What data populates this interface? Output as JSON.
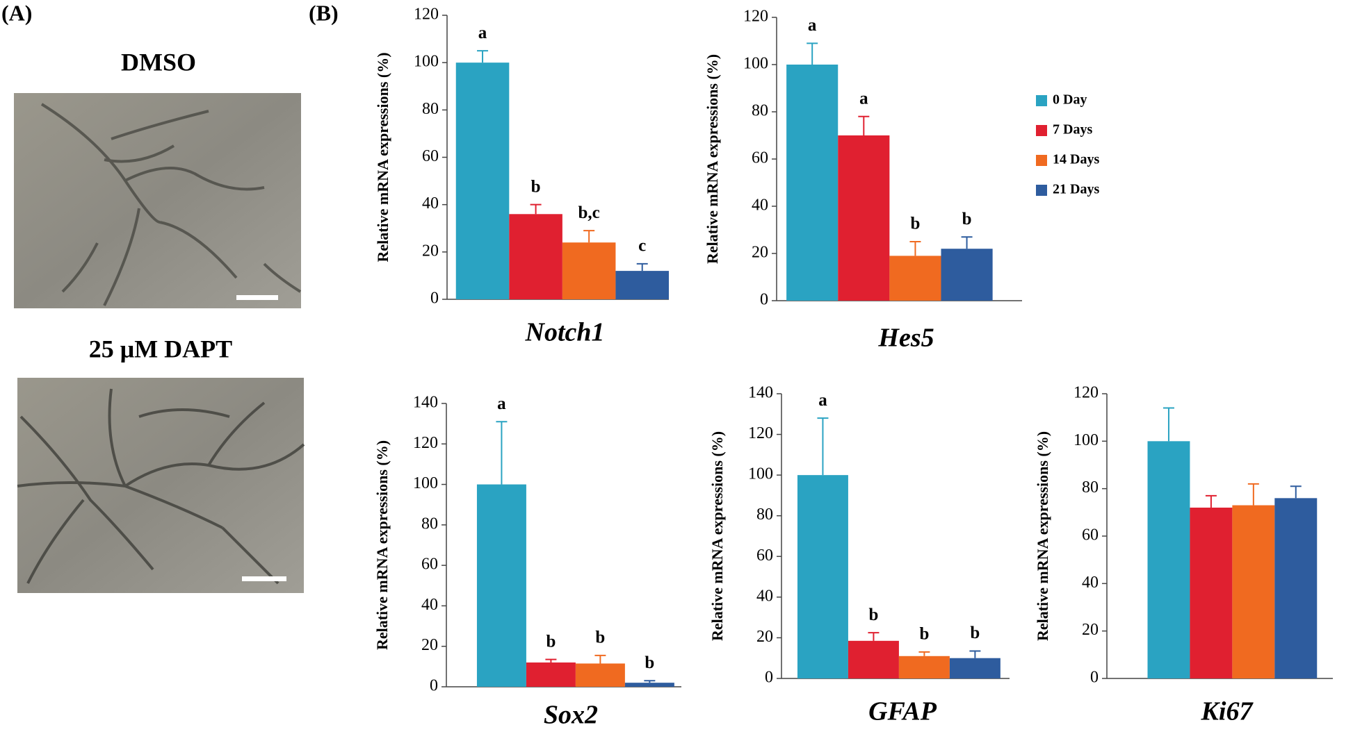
{
  "panel_labels": [
    "(A)",
    "(B)"
  ],
  "images": [
    {
      "label": "DMSO"
    },
    {
      "label": "25 μM DAPT"
    }
  ],
  "chart_data": [
    {
      "type": "bar",
      "title": "Notch1",
      "y_label": "Relative mRNA expressions (%)",
      "ylim": [
        0,
        120
      ],
      "yticks": [
        0,
        20,
        40,
        60,
        80,
        100,
        120
      ],
      "series": [
        {
          "color": "#2aa3c2",
          "values": [
            100
          ],
          "errors": [
            5
          ]
        },
        {
          "color": "#e02030",
          "values": [
            36
          ],
          "errors": [
            4
          ]
        },
        {
          "color": "#f06a20",
          "values": [
            24
          ],
          "errors": [
            5
          ]
        },
        {
          "color": "#2e5c9e",
          "values": [
            12
          ],
          "errors": [
            3
          ]
        }
      ],
      "annotations": [
        "a",
        "b",
        "b,c",
        "c"
      ]
    },
    {
      "type": "bar",
      "title": "Hes5",
      "y_label": "Relative mRNA expressions (%)",
      "ylim": [
        0,
        120
      ],
      "yticks": [
        0,
        20,
        40,
        60,
        80,
        100,
        120
      ],
      "legend": "right",
      "series": [
        {
          "name": "0 Day",
          "color": "#2aa3c2",
          "values": [
            100
          ],
          "errors": [
            9
          ]
        },
        {
          "name": "7 Days",
          "color": "#e02030",
          "values": [
            70
          ],
          "errors": [
            8
          ]
        },
        {
          "name": "14 Days",
          "color": "#f06a20",
          "values": [
            19
          ],
          "errors": [
            6
          ]
        },
        {
          "name": "21 Days",
          "color": "#2e5c9e",
          "values": [
            22
          ],
          "errors": [
            5
          ]
        }
      ],
      "annotations": [
        "a",
        "a",
        "b",
        "b"
      ]
    },
    {
      "type": "bar",
      "title": "Sox2",
      "y_label": "Relative mRNA expressions (%)",
      "ylim": [
        0,
        140
      ],
      "yticks": [
        0,
        20,
        40,
        60,
        80,
        100,
        120,
        140
      ],
      "series": [
        {
          "color": "#2aa3c2",
          "values": [
            100
          ],
          "errors": [
            31
          ]
        },
        {
          "color": "#e02030",
          "values": [
            12
          ],
          "errors": [
            1.5
          ]
        },
        {
          "color": "#f06a20",
          "values": [
            11.5
          ],
          "errors": [
            4
          ]
        },
        {
          "color": "#2e5c9e",
          "values": [
            2
          ],
          "errors": [
            1
          ]
        }
      ],
      "annotations": [
        "a",
        "b",
        "b",
        "b"
      ]
    },
    {
      "type": "bar",
      "title": "GFAP",
      "y_label": "Relative mRNA expressions (%)",
      "ylim": [
        0,
        140
      ],
      "yticks": [
        0,
        20,
        40,
        60,
        80,
        100,
        120,
        140
      ],
      "series": [
        {
          "color": "#2aa3c2",
          "values": [
            100
          ],
          "errors": [
            28
          ]
        },
        {
          "color": "#e02030",
          "values": [
            18.5
          ],
          "errors": [
            4
          ]
        },
        {
          "color": "#f06a20",
          "values": [
            11
          ],
          "errors": [
            2
          ]
        },
        {
          "color": "#2e5c9e",
          "values": [
            10
          ],
          "errors": [
            3.5
          ]
        }
      ],
      "annotations": [
        "a",
        "b",
        "b",
        "b"
      ]
    },
    {
      "type": "bar",
      "title": "Ki67",
      "y_label": "Relative mRNA expressions (%)",
      "ylim": [
        0,
        120
      ],
      "yticks": [
        0,
        20,
        40,
        60,
        80,
        100,
        120
      ],
      "series": [
        {
          "color": "#2aa3c2",
          "values": [
            100
          ],
          "errors": [
            14
          ]
        },
        {
          "color": "#e02030",
          "values": [
            72
          ],
          "errors": [
            5
          ]
        },
        {
          "color": "#f06a20",
          "values": [
            73
          ],
          "errors": [
            9
          ]
        },
        {
          "color": "#2e5c9e",
          "values": [
            76
          ],
          "errors": [
            5
          ]
        }
      ]
    }
  ]
}
